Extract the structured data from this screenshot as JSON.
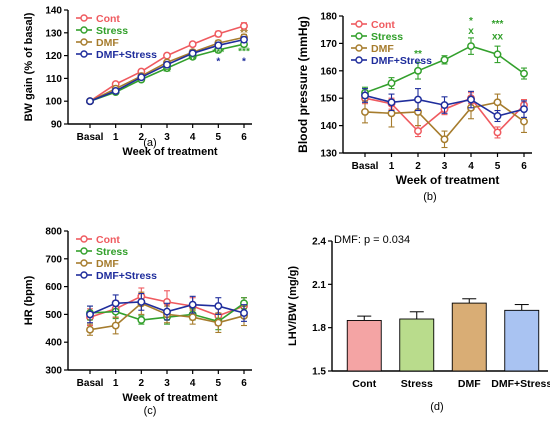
{
  "colors": {
    "Cont": "#ef5a5f",
    "Stress": "#33a02c",
    "DMF": "#a67c2d",
    "DMF+Stress": "#1f2d9c",
    "axis": "#000000"
  },
  "chart_data": [
    {
      "id": "a",
      "type": "line",
      "panel_label": "(a)",
      "xlabel": "Week of treatment",
      "ylabel": "BW gain (% of basal)",
      "x": [
        "Basal",
        "1",
        "2",
        "3",
        "4",
        "5",
        "6"
      ],
      "ylim": [
        90,
        140
      ],
      "yticks": [
        90,
        100,
        110,
        120,
        130,
        140
      ],
      "legend": "top-left",
      "series": [
        {
          "name": "Cont",
          "values": [
            100,
            107.5,
            113,
            120,
            125,
            129.5,
            133
          ],
          "err": [
            0,
            0.8,
            0.8,
            0.8,
            0.9,
            1.2,
            1.4
          ],
          "marker": "circle-open"
        },
        {
          "name": "Stress",
          "values": [
            100,
            104,
            109.5,
            114.5,
            119.5,
            122.5,
            125
          ],
          "err": [
            0,
            0.8,
            0.8,
            1.0,
            1.0,
            1.2,
            1.2
          ],
          "marker": "circle-open"
        },
        {
          "name": "DMF",
          "values": [
            100,
            105.5,
            111,
            117,
            121.5,
            125.5,
            128
          ],
          "err": [
            0,
            0.8,
            0.9,
            1.0,
            1.1,
            1.2,
            1.3
          ],
          "marker": "circle-open"
        },
        {
          "name": "DMF+Stress",
          "values": [
            100,
            104.5,
            110.5,
            116,
            121,
            124.5,
            127
          ],
          "err": [
            0,
            0.8,
            0.9,
            1.0,
            1.1,
            1.2,
            1.2
          ],
          "marker": "circle-open"
        }
      ],
      "annotations": [
        {
          "text": "**",
          "x": "3",
          "y": 111.5,
          "color": "Stress"
        },
        {
          "text": "**",
          "x": "4",
          "y": 117,
          "color": "Stress"
        },
        {
          "text": "***",
          "x": "5",
          "y": 120,
          "color": "Stress"
        },
        {
          "text": "*",
          "x": "5",
          "y": 116,
          "color": "DMF+Stress"
        },
        {
          "text": "**",
          "x": "6",
          "y": 128.5,
          "color": "DMF"
        },
        {
          "text": "***",
          "x": "6",
          "y": 120.5,
          "color": "Stress"
        },
        {
          "text": "*",
          "x": "6",
          "y": 116,
          "color": "DMF+Stress"
        }
      ]
    },
    {
      "id": "b",
      "type": "line",
      "panel_label": "(b)",
      "xlabel": "Week of treatment",
      "ylabel": "Blood pressure (mmHg)",
      "x": [
        "Basal",
        "1",
        "2",
        "3",
        "4",
        "5",
        "6"
      ],
      "ylim": [
        130,
        180
      ],
      "yticks": [
        130,
        140,
        150,
        160,
        170,
        180
      ],
      "legend": "top-left",
      "series": [
        {
          "name": "Cont",
          "values": [
            150,
            148,
            138,
            146,
            150,
            137.5,
            147.5
          ],
          "err": [
            2,
            2,
            2,
            2,
            2,
            2,
            2
          ],
          "marker": "circle-open"
        },
        {
          "name": "Stress",
          "values": [
            152,
            155.5,
            160,
            164,
            169,
            166,
            159
          ],
          "err": [
            2,
            2,
            3,
            1.5,
            3,
            3,
            2
          ],
          "marker": "circle-open"
        },
        {
          "name": "DMF",
          "values": [
            145,
            144.5,
            145,
            135,
            146.5,
            148.5,
            141.5
          ],
          "err": [
            4,
            5,
            5,
            3,
            4,
            3,
            4
          ],
          "marker": "circle-open"
        },
        {
          "name": "DMF+Stress",
          "values": [
            151,
            148.5,
            149.5,
            147.5,
            149.5,
            143.5,
            146
          ],
          "err": [
            2.5,
            3,
            4,
            3,
            3,
            2,
            3
          ],
          "marker": "circle-open"
        }
      ],
      "annotations": [
        {
          "text": "**",
          "x": "2",
          "y": 165,
          "color": "Stress"
        },
        {
          "text": "*",
          "x": "4",
          "y": 177,
          "color": "Stress"
        },
        {
          "text": "x",
          "x": "4",
          "y": 173.5,
          "color": "Stress"
        },
        {
          "text": "***",
          "x": "5",
          "y": 176,
          "color": "Stress"
        },
        {
          "text": "xx",
          "x": "5",
          "y": 171.5,
          "color": "Stress"
        }
      ]
    },
    {
      "id": "c",
      "type": "line",
      "panel_label": "(c)",
      "xlabel": "Week of treatment",
      "ylabel": "HR (bpm)",
      "x": [
        "Basal",
        "1",
        "2",
        "3",
        "4",
        "5",
        "6"
      ],
      "ylim": [
        300,
        800
      ],
      "yticks": [
        300,
        400,
        500,
        600,
        700,
        800
      ],
      "legend": "top-left",
      "series": [
        {
          "name": "Cont",
          "values": [
            490,
            520,
            565,
            545,
            530,
            495,
            530
          ],
          "err": [
            30,
            30,
            30,
            40,
            30,
            35,
            30
          ],
          "marker": "circle-open"
        },
        {
          "name": "Stress",
          "values": [
            505,
            510,
            480,
            490,
            500,
            475,
            540
          ],
          "err": [
            25,
            25,
            15,
            25,
            20,
            30,
            20
          ],
          "marker": "circle-open"
        },
        {
          "name": "DMF",
          "values": [
            445,
            460,
            540,
            500,
            490,
            470,
            495
          ],
          "err": [
            20,
            30,
            40,
            30,
            25,
            35,
            35
          ],
          "marker": "circle-open"
        },
        {
          "name": "DMF+Stress",
          "values": [
            500,
            540,
            545,
            510,
            535,
            530,
            505
          ],
          "err": [
            30,
            30,
            30,
            30,
            30,
            30,
            30
          ],
          "marker": "circle-open"
        }
      ]
    },
    {
      "id": "d",
      "type": "bar",
      "panel_label": "(d)",
      "ylabel": "LHV/BW (mg/g)",
      "categories": [
        "Cont",
        "Stress",
        "DMF",
        "DMF+Stress"
      ],
      "values": [
        1.85,
        1.86,
        1.97,
        1.92
      ],
      "err": [
        0.03,
        0.05,
        0.03,
        0.04
      ],
      "bar_colors": [
        "#f4a4a4",
        "#b9dc8c",
        "#d9ad75",
        "#a9c3f2"
      ],
      "ylim": [
        1.5,
        2.4
      ],
      "yticks": [
        "1.5",
        "1.8",
        "2.1",
        "2.4"
      ],
      "annotation": "DMF: p = 0.034"
    }
  ]
}
